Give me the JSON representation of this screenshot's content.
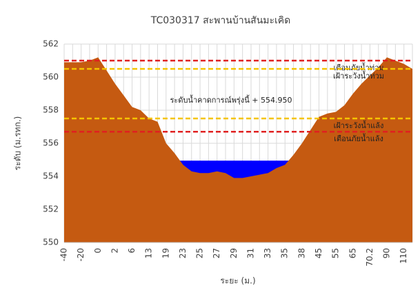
{
  "chart_data": {
    "type": "area",
    "title": "TC030317 สะพานบ้านสันมะเคิด",
    "y_label": "ระดับ (ม.รทก.)",
    "x_label": "ระยะ (ม.)",
    "categories": [
      "-40",
      null,
      "-20",
      null,
      "0",
      null,
      "2",
      null,
      "6",
      null,
      "13",
      null,
      "19",
      null,
      "23",
      null,
      "25",
      null,
      "27",
      null,
      "29",
      null,
      "31",
      null,
      "33",
      null,
      "35",
      null,
      "38",
      null,
      "45",
      null,
      "55",
      null,
      "65",
      null,
      "70.2",
      null,
      "90",
      null,
      "110",
      null
    ],
    "values": [
      560.9,
      560.9,
      560.9,
      561.0,
      561.2,
      560.4,
      559.6,
      558.9,
      558.2,
      558.0,
      557.5,
      557.3,
      556.0,
      555.4,
      554.7,
      554.3,
      554.2,
      554.2,
      554.3,
      554.2,
      553.9,
      553.9,
      554.0,
      554.1,
      554.2,
      554.5,
      554.7,
      555.3,
      556.0,
      556.8,
      557.6,
      557.8,
      557.9,
      558.3,
      559.0,
      559.6,
      560.1,
      560.6,
      561.2,
      561.0,
      560.8,
      560.5
    ],
    "color": "#c55a11",
    "water_level": {
      "value": 554.95,
      "label": "ระดับน้ำคาดการณ์พรุ่งนี้ + 554.950"
    },
    "water_color": "#0000ff",
    "thresholds": [
      {
        "name": "เตือนภัยน้ำท่วม",
        "value": 561.0,
        "color": "#e02020"
      },
      {
        "name": "เฝ้าระวังน้ำท่วม",
        "value": 560.5,
        "color": "#f5c400"
      },
      {
        "name": "เฝ้าระวังน้ำแล้ง",
        "value": 557.5,
        "color": "#f5c400"
      },
      {
        "name": "เตือนภัยน้ำแล้ง",
        "value": 556.7,
        "color": "#e02020"
      }
    ],
    "ylim": [
      550,
      562
    ],
    "yticks": [
      550,
      552,
      554,
      556,
      558,
      560,
      562
    ],
    "grid": true
  }
}
